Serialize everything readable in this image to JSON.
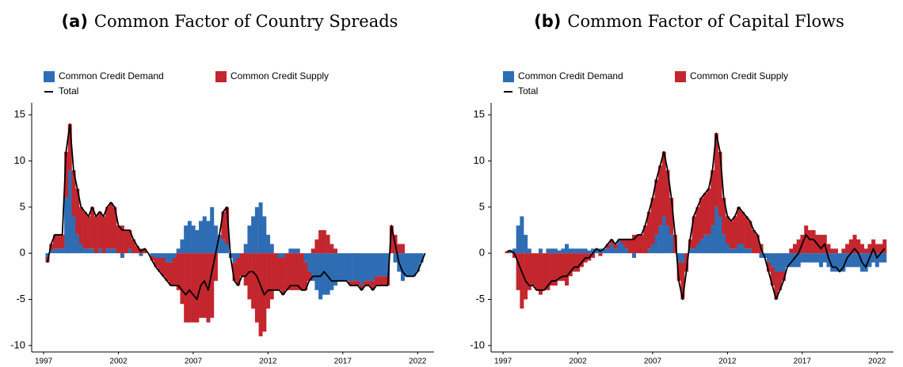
{
  "chart_data": [
    {
      "type": "bar",
      "stacked": true,
      "panel_label": "(a)",
      "title": "Common Factor of Country Spreads",
      "x": [
        1997.25,
        1997.5,
        1997.75,
        1998,
        1998.25,
        1998.5,
        1998.75,
        1999,
        1999.25,
        1999.5,
        1999.75,
        2000,
        2000.25,
        2000.5,
        2000.75,
        2001,
        2001.25,
        2001.5,
        2001.75,
        2002,
        2002.25,
        2002.5,
        2002.75,
        2003,
        2003.25,
        2003.5,
        2003.75,
        2004,
        2004.25,
        2004.5,
        2004.75,
        2005,
        2005.25,
        2005.5,
        2005.75,
        2006,
        2006.25,
        2006.5,
        2006.75,
        2007,
        2007.25,
        2007.5,
        2007.75,
        2008,
        2008.25,
        2008.5,
        2008.75,
        2009,
        2009.25,
        2009.5,
        2009.75,
        2010,
        2010.25,
        2010.5,
        2010.75,
        2011,
        2011.25,
        2011.5,
        2011.75,
        2012,
        2012.25,
        2012.5,
        2012.75,
        2013,
        2013.25,
        2013.5,
        2013.75,
        2014,
        2014.25,
        2014.5,
        2014.75,
        2015,
        2015.25,
        2015.5,
        2015.75,
        2016,
        2016.25,
        2016.5,
        2016.75,
        2017,
        2017.25,
        2017.5,
        2017.75,
        2018,
        2018.25,
        2018.5,
        2018.75,
        2019,
        2019.25,
        2019.5,
        2019.75,
        2020,
        2020.25,
        2020.5,
        2020.75,
        2021,
        2021.25,
        2021.5,
        2021.75,
        2022,
        2022.25,
        2022.5
      ],
      "series": [
        {
          "name": "Common Credit Demand",
          "color": "#2e6db4",
          "kind": "bar",
          "values": [
            -0.5,
            0.3,
            0.5,
            0.5,
            0.5,
            6,
            9,
            4,
            2,
            1,
            0.5,
            0.5,
            0.5,
            0,
            0.5,
            0,
            0.5,
            0.5,
            0.5,
            0,
            -0.5,
            0,
            0.5,
            0,
            0,
            -0.3,
            0,
            0,
            -0.3,
            -0.5,
            -0.5,
            -0.5,
            -1,
            -1,
            -0.5,
            0.5,
            1.5,
            3,
            3.5,
            3,
            2.5,
            3.5,
            4,
            3.5,
            5,
            3,
            2,
            1.5,
            1,
            -0.5,
            -1,
            -0.5,
            0,
            1,
            3,
            4,
            5,
            5.5,
            4,
            2,
            1,
            0,
            -0.5,
            -0.5,
            0,
            0.5,
            0.5,
            0.5,
            0,
            -1,
            -2,
            -3,
            -4,
            -5,
            -4.5,
            -4.5,
            -4,
            -3.5,
            -3,
            -3,
            -3,
            -3,
            -3,
            -3,
            -3.5,
            -3,
            -3,
            -3,
            -2.5,
            -2.5,
            -2.5,
            -2.5,
            0,
            -1,
            -2,
            -3,
            -2.5,
            -2.5,
            -2.5,
            -2,
            -1,
            0
          ]
        },
        {
          "name": "Common Credit Supply",
          "color": "#c4262e",
          "kind": "bar",
          "values": [
            -0.5,
            0.7,
            1.5,
            1.5,
            1.5,
            5,
            5,
            5,
            5,
            4,
            4,
            3.5,
            4.5,
            4,
            4,
            4,
            4.5,
            5,
            4.5,
            3,
            3,
            2.5,
            2,
            1.5,
            0.8,
            0.5,
            0.5,
            0,
            -0.5,
            -1,
            -1.5,
            -2,
            -2,
            -2.5,
            -3,
            -4,
            -5.5,
            -7.5,
            -7.5,
            -7.5,
            -7.5,
            -7,
            -7,
            -7.5,
            -7,
            -3,
            0,
            3,
            4,
            0,
            -2,
            -3,
            -2.5,
            -3.5,
            -5,
            -6,
            -7.5,
            -9,
            -8.5,
            -6,
            -5,
            -4,
            -3.5,
            -4,
            -4,
            -4,
            -4,
            -4,
            -4,
            -3,
            -1,
            0.5,
            1.5,
            2.5,
            2.5,
            2,
            1,
            0.5,
            0,
            0,
            0,
            -0.5,
            -0.5,
            -0.5,
            -0.5,
            -0.5,
            -0.5,
            -1,
            -1,
            -1,
            -1,
            -1,
            3,
            2,
            1,
            1,
            0,
            0,
            0,
            0,
            0,
            0
          ]
        },
        {
          "name": "Total",
          "color": "#000000",
          "kind": "line",
          "values": [
            -1,
            1,
            2,
            2,
            2,
            11,
            14,
            9,
            7,
            5,
            4.5,
            4,
            5,
            4,
            4.5,
            4,
            5,
            5.5,
            5,
            3,
            2.5,
            2.5,
            2.5,
            1.5,
            0.8,
            0.2,
            0.5,
            0,
            -0.8,
            -1.5,
            -2,
            -2.5,
            -3,
            -3.5,
            -3.5,
            -3.5,
            -4,
            -4.5,
            -4,
            -4.5,
            -5,
            -3.5,
            -3,
            -4,
            -2,
            0,
            2,
            4.5,
            5,
            -0.5,
            -3,
            -3.5,
            -2.5,
            -2.5,
            -2,
            -2,
            -2.5,
            -3.5,
            -4.5,
            -4,
            -4,
            -4,
            -4,
            -4.5,
            -4,
            -3.5,
            -3.5,
            -3.5,
            -4,
            -4,
            -3,
            -2.5,
            -2.5,
            -2.5,
            -2,
            -2.5,
            -3,
            -3,
            -3,
            -3,
            -3,
            -3.5,
            -3.5,
            -3.5,
            -4,
            -3.5,
            -3.5,
            -4,
            -3.5,
            -3.5,
            -3.5,
            -3.5,
            3,
            1,
            -1,
            -2,
            -2.5,
            -2.5,
            -2.5,
            -2,
            -1,
            0
          ]
        }
      ],
      "xlim": [
        1996.2,
        2023.1
      ],
      "xticks": [
        1997,
        2002,
        2007,
        2012,
        2017,
        2022
      ],
      "ylim": [
        -10.7,
        16.3
      ],
      "yticks": [
        -10,
        -5,
        0,
        5,
        10,
        15
      ],
      "legend": "top-left"
    },
    {
      "type": "bar",
      "stacked": true,
      "panel_label": "(b)",
      "title": "Common Factor of Capital Flows",
      "x": [
        1997.25,
        1997.5,
        1997.75,
        1998,
        1998.25,
        1998.5,
        1998.75,
        1999,
        1999.25,
        1999.5,
        1999.75,
        2000,
        2000.25,
        2000.5,
        2000.75,
        2001,
        2001.25,
        2001.5,
        2001.75,
        2002,
        2002.25,
        2002.5,
        2002.75,
        2003,
        2003.25,
        2003.5,
        2003.75,
        2004,
        2004.25,
        2004.5,
        2004.75,
        2005,
        2005.25,
        2005.5,
        2005.75,
        2006,
        2006.25,
        2006.5,
        2006.75,
        2007,
        2007.25,
        2007.5,
        2007.75,
        2008,
        2008.25,
        2008.5,
        2008.75,
        2009,
        2009.25,
        2009.5,
        2009.75,
        2010,
        2010.25,
        2010.5,
        2010.75,
        2011,
        2011.25,
        2011.5,
        2011.75,
        2012,
        2012.25,
        2012.5,
        2012.75,
        2013,
        2013.25,
        2013.5,
        2013.75,
        2014,
        2014.25,
        2014.5,
        2014.75,
        2015,
        2015.25,
        2015.5,
        2015.75,
        2016,
        2016.25,
        2016.5,
        2016.75,
        2017,
        2017.25,
        2017.5,
        2017.75,
        2018,
        2018.25,
        2018.5,
        2018.75,
        2019,
        2019.25,
        2019.5,
        2019.75,
        2020,
        2020.25,
        2020.5,
        2020.75,
        2021,
        2021.25,
        2021.5,
        2021.75,
        2022,
        2022.25,
        2022.5
      ],
      "series": [
        {
          "name": "Common Credit Demand",
          "color": "#2e6db4",
          "kind": "bar",
          "values": [
            0,
            0.3,
            0.5,
            3,
            4,
            2,
            0.5,
            0,
            0,
            0.5,
            0,
            0.5,
            0.5,
            0.5,
            0.3,
            0.5,
            1,
            0.5,
            0.5,
            0.5,
            0.5,
            0.5,
            0.3,
            0.5,
            0.5,
            0.5,
            0.5,
            0.5,
            1,
            0.5,
            1.5,
            1,
            0.5,
            0,
            -0.5,
            0,
            0,
            0,
            0.5,
            1,
            2,
            3,
            4,
            3,
            2,
            0,
            -1,
            -1,
            0,
            0.5,
            0.5,
            1,
            1.5,
            2,
            2,
            3,
            5,
            4,
            2,
            1,
            0.5,
            0.5,
            1,
            1,
            0.5,
            0.5,
            0,
            0,
            -0.5,
            -0.5,
            -1,
            -1.5,
            -2,
            -2,
            -2,
            -1.5,
            -1.5,
            -1.5,
            -1.5,
            -1,
            -1,
            -1,
            -1,
            -1,
            -1.5,
            -1,
            -1.5,
            -2,
            -2,
            -2,
            -2,
            -1.5,
            -1.5,
            -1.5,
            -1.5,
            -2,
            -2,
            -1.5,
            -1,
            -1.5,
            -1,
            -1
          ]
        },
        {
          "name": "Common Credit Supply",
          "color": "#c4262e",
          "kind": "bar",
          "values": [
            0.2,
            0,
            -0.5,
            -4,
            -6,
            -5,
            -4,
            -3.5,
            -4,
            -4.5,
            -4,
            -4,
            -3.5,
            -3.5,
            -3,
            -3,
            -3.5,
            -2.5,
            -2,
            -2,
            -1.5,
            -1,
            -0.8,
            -0.5,
            0,
            -0.3,
            0,
            0.5,
            0.5,
            0.5,
            0,
            0.5,
            1,
            1.5,
            2,
            2,
            2,
            3,
            4,
            5,
            6,
            6.5,
            7,
            6,
            4,
            2,
            -2,
            -4,
            -2,
            1,
            3.5,
            4,
            4.5,
            4.5,
            5,
            6,
            8,
            7,
            4,
            3,
            3,
            3.5,
            4,
            3.5,
            3.5,
            3,
            2.5,
            2,
            1,
            0,
            -1,
            -2,
            -3,
            -2,
            -1,
            0,
            0.5,
            1,
            1.5,
            2,
            3,
            2.5,
            2.5,
            2,
            2,
            2,
            1,
            0.5,
            0.5,
            0,
            0.5,
            1,
            1.5,
            2,
            1.5,
            1,
            0.5,
            1,
            1.5,
            1,
            1,
            1.5
          ]
        },
        {
          "name": "Total",
          "color": "#000000",
          "kind": "line",
          "values": [
            0.2,
            0.3,
            0,
            -1,
            -2,
            -3,
            -3.5,
            -3.5,
            -4,
            -4,
            -4,
            -3.5,
            -3,
            -3,
            -2.7,
            -2.5,
            -2.5,
            -2,
            -1.5,
            -1.5,
            -1,
            -0.5,
            -0.5,
            0,
            0.5,
            0.2,
            0.5,
            1,
            1.5,
            1,
            1.5,
            1.5,
            1.5,
            1.5,
            1.5,
            2,
            2,
            3,
            4.5,
            6,
            8,
            9.5,
            11,
            9,
            6,
            2,
            -3,
            -5,
            -2,
            1.5,
            4,
            5,
            6,
            6.5,
            7,
            9,
            13,
            11,
            6,
            4,
            3.5,
            4,
            5,
            4.5,
            4,
            3.5,
            2.5,
            2,
            0.5,
            -0.5,
            -2,
            -3.5,
            -5,
            -4,
            -3,
            -1.5,
            -1,
            -0.5,
            0,
            1,
            2,
            1.5,
            1.5,
            1,
            0.5,
            1,
            -0.5,
            -1.5,
            -1.5,
            -2,
            -1.5,
            -0.5,
            0,
            0.5,
            0,
            -1,
            -1.5,
            -0.5,
            0.5,
            -0.5,
            0,
            0.5
          ]
        }
      ],
      "xlim": [
        1996.2,
        2023.1
      ],
      "xticks": [
        1997,
        2002,
        2007,
        2012,
        2017,
        2022
      ],
      "ylim": [
        -10.7,
        16.3
      ],
      "yticks": [
        -10,
        -5,
        0,
        5,
        10,
        15
      ],
      "legend": "top-left"
    }
  ]
}
